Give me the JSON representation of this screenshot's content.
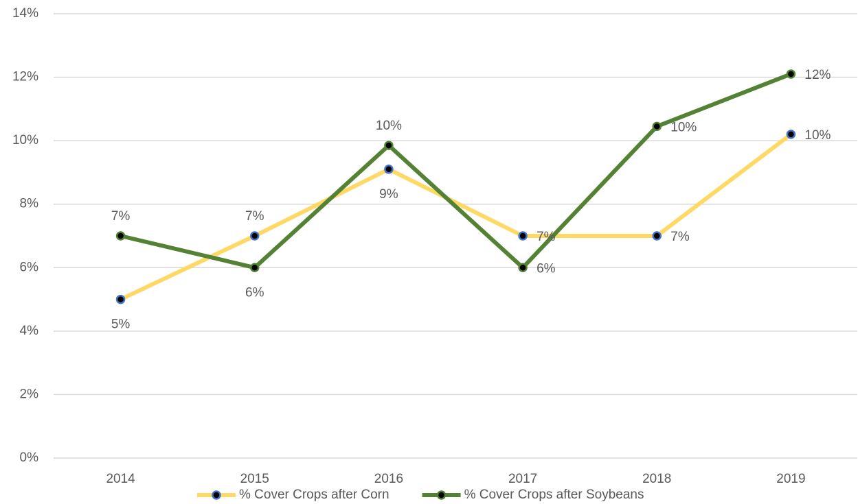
{
  "chart_data": {
    "type": "line",
    "categories": [
      "2014",
      "2015",
      "2016",
      "2017",
      "2018",
      "2019"
    ],
    "series": [
      {
        "name": "% Cover Crops after Corn",
        "color": "#ffd966",
        "marker_edge_color": "#4472c4",
        "values": [
          5,
          7,
          9.1,
          7,
          7,
          10.2
        ],
        "value_labels": [
          "5%",
          "7%",
          "9%",
          "7%",
          "7%",
          "10%"
        ]
      },
      {
        "name": "% Cover Crops after Soybeans",
        "color": "#548235",
        "marker_edge_color": "#548235",
        "values": [
          7,
          6,
          9.85,
          6,
          10.45,
          12.1
        ],
        "value_labels": [
          "7%",
          "6%",
          "10%",
          "6%",
          "10%",
          "12%"
        ]
      }
    ],
    "ylim": [
      0,
      14
    ],
    "yticks": [
      {
        "value": 0,
        "label": "0%"
      },
      {
        "value": 2,
        "label": "2%"
      },
      {
        "value": 4,
        "label": "4%"
      },
      {
        "value": 6,
        "label": "6%"
      },
      {
        "value": 8,
        "label": "8%"
      },
      {
        "value": 10,
        "label": "10%"
      },
      {
        "value": 12,
        "label": "12%"
      },
      {
        "value": 14,
        "label": "14%"
      }
    ],
    "grid": true,
    "legend": "bottom"
  }
}
